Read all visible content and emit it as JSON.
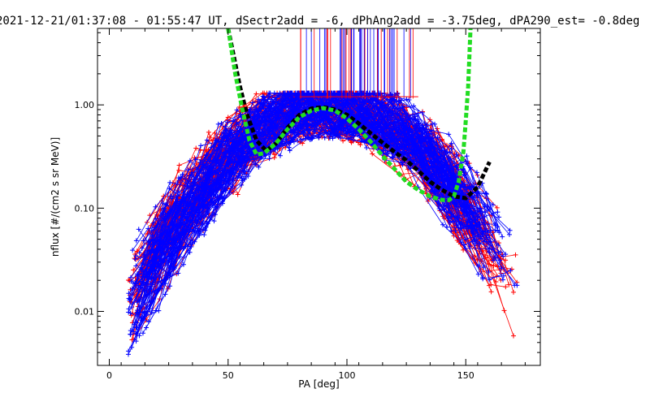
{
  "chart_data": {
    "type": "line",
    "title": "2021-12-21/01:37:08 - 01:55:47 UT, dSectr2add = -6, dPhAng2add = -3.75deg, dPA290_est=  -0.8deg",
    "xlabel": "PA [deg]",
    "ylabel": "nflux [#/(cm2 s sr MeV)]",
    "xlim": [
      -5,
      180
    ],
    "ylim": [
      0.003,
      5.5
    ],
    "yscale": "log",
    "xticks": [
      0,
      50,
      100,
      150
    ],
    "xtick_labels": [
      "0",
      "50",
      "100",
      "150"
    ],
    "yticks": [
      0.01,
      0.1,
      1.0
    ],
    "ytick_labels": [
      "0.01",
      "0.10",
      "1.00"
    ],
    "grid": false,
    "colors": {
      "red": "#ff0000",
      "blue": "#0000ff",
      "black": "#000000",
      "green": "#22dd22"
    },
    "series": [
      {
        "color": "black",
        "style": "thick-dashed",
        "x": [
          50,
          55,
          58,
          62,
          66,
          70,
          75,
          80,
          85,
          90,
          95,
          100,
          105,
          110,
          115,
          120,
          125,
          130,
          135,
          140,
          145,
          150,
          155,
          160
        ],
        "y": [
          5.5,
          1.5,
          0.8,
          0.45,
          0.36,
          0.42,
          0.6,
          0.8,
          0.92,
          0.95,
          0.9,
          0.8,
          0.66,
          0.53,
          0.43,
          0.35,
          0.29,
          0.23,
          0.18,
          0.15,
          0.13,
          0.125,
          0.16,
          0.28
        ]
      },
      {
        "color": "green",
        "style": "thick-dashed",
        "x": [
          50,
          53,
          56,
          59,
          62,
          65,
          70,
          75,
          80,
          85,
          90,
          95,
          100,
          105,
          110,
          115,
          120,
          125,
          130,
          135,
          140,
          143,
          145,
          147,
          149,
          150,
          151,
          152
        ],
        "y": [
          5.5,
          2.0,
          0.9,
          0.45,
          0.33,
          0.34,
          0.42,
          0.58,
          0.76,
          0.88,
          0.93,
          0.88,
          0.74,
          0.58,
          0.44,
          0.32,
          0.24,
          0.18,
          0.15,
          0.13,
          0.12,
          0.12,
          0.13,
          0.18,
          0.35,
          0.7,
          1.5,
          5.5
        ]
      }
    ]
  }
}
